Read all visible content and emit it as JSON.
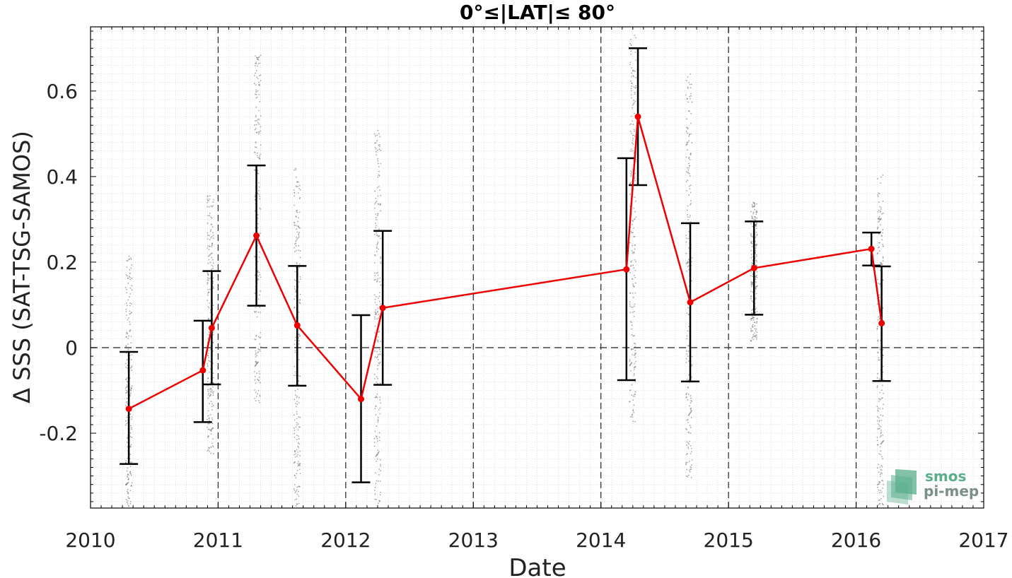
{
  "chart_data": {
    "type": "line",
    "title": "0°≤|LAT|≤ 80°",
    "xlabel": "Date",
    "ylabel": "Δ SSS (SAT-TSG-SAMOS)",
    "xlim": [
      2010,
      2017
    ],
    "ylim": [
      -0.375,
      0.75
    ],
    "x_ticks": [
      2010,
      2011,
      2012,
      2013,
      2014,
      2015,
      2016,
      2017
    ],
    "x_tick_labels": [
      "2010",
      "2011",
      "2012",
      "2013",
      "2014",
      "2015",
      "2016",
      "2017"
    ],
    "y_ticks": [
      -0.2,
      0,
      0.2,
      0.4,
      0.6
    ],
    "y_tick_labels": [
      "-0.2",
      "0",
      "0.2",
      "0.4",
      "0.6"
    ],
    "grid": true,
    "zero_line": true,
    "year_separators": [
      2011,
      2012,
      2013,
      2014,
      2015,
      2016
    ],
    "series": [
      {
        "color": "#ee0000",
        "points": [
          {
            "x": 2010.3,
            "y": -0.143,
            "err_low": -0.272,
            "err_high": -0.01
          },
          {
            "x": 2010.88,
            "y": -0.053,
            "err_low": -0.174,
            "err_high": 0.063
          },
          {
            "x": 2010.95,
            "y": 0.046,
            "err_low": -0.086,
            "err_high": 0.179
          },
          {
            "x": 2011.3,
            "y": 0.262,
            "err_low": 0.098,
            "err_high": 0.426
          },
          {
            "x": 2011.62,
            "y": 0.052,
            "err_low": -0.089,
            "err_high": 0.191
          },
          {
            "x": 2012.12,
            "y": -0.12,
            "err_low": -0.315,
            "err_high": 0.076
          },
          {
            "x": 2012.29,
            "y": 0.093,
            "err_low": -0.087,
            "err_high": 0.273
          },
          {
            "x": 2014.2,
            "y": 0.183,
            "err_low": -0.076,
            "err_high": 0.443
          },
          {
            "x": 2014.29,
            "y": 0.54,
            "err_low": 0.38,
            "err_high": 0.7
          },
          {
            "x": 2014.7,
            "y": 0.106,
            "err_low": -0.079,
            "err_high": 0.291
          },
          {
            "x": 2015.2,
            "y": 0.186,
            "err_low": 0.077,
            "err_high": 0.295
          },
          {
            "x": 2016.12,
            "y": 0.231,
            "err_low": 0.192,
            "err_high": 0.269
          },
          {
            "x": 2016.2,
            "y": 0.057,
            "err_low": -0.078,
            "err_high": 0.19
          }
        ]
      }
    ],
    "scatter_clusters": [
      {
        "x": 2010.3,
        "y_min": -0.37,
        "y_max": 0.23
      },
      {
        "x": 2010.94,
        "y_min": -0.25,
        "y_max": 0.36
      },
      {
        "x": 2011.31,
        "y_min": -0.13,
        "y_max": 0.69
      },
      {
        "x": 2011.62,
        "y_min": -0.37,
        "y_max": 0.42
      },
      {
        "x": 2012.25,
        "y_min": -0.37,
        "y_max": 0.51
      },
      {
        "x": 2014.25,
        "y_min": -0.18,
        "y_max": 0.74
      },
      {
        "x": 2014.69,
        "y_min": -0.31,
        "y_max": 0.64
      },
      {
        "x": 2015.2,
        "y_min": 0.01,
        "y_max": 0.34
      },
      {
        "x": 2016.19,
        "y_min": -0.37,
        "y_max": 0.41
      }
    ],
    "points_color": "#808080",
    "errorbar_color": "#000000"
  },
  "logo": {
    "line1": "smos",
    "line2": "pi-mep",
    "color": "#5aae8c"
  }
}
